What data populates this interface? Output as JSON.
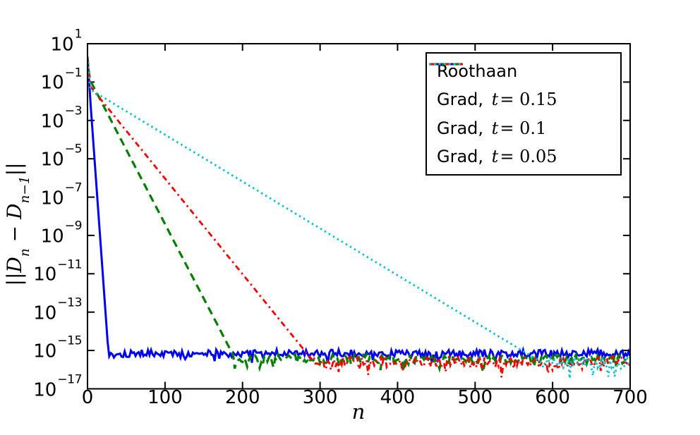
{
  "page": {
    "background": "#ffffff"
  },
  "chart_data": {
    "type": "line",
    "title": "",
    "xlabel": "n",
    "ylabel": "||D_n - D_{n-1}||",
    "ylabel_tokens": [
      {
        "text": "||",
        "kind": "norm"
      },
      {
        "text": "D",
        "kind": "var"
      },
      {
        "text": "n",
        "kind": "sub"
      },
      {
        "text": " − ",
        "kind": "norm"
      },
      {
        "text": "D",
        "kind": "var"
      },
      {
        "text": "n−1",
        "kind": "sub"
      },
      {
        "text": "||",
        "kind": "norm"
      }
    ],
    "grid": false,
    "x_axis": {
      "min": 0,
      "max": 700,
      "ticks": [
        0,
        100,
        200,
        300,
        400,
        500,
        600,
        700
      ]
    },
    "y_axis": {
      "scale": "log10",
      "min_exp": -17,
      "max_exp": 1,
      "tick_base": "10",
      "tick_exponents": [
        1,
        -1,
        -3,
        -5,
        -7,
        -9,
        -11,
        -13,
        -15,
        -17
      ]
    },
    "legend": {
      "position": "upper-right",
      "border_color": "#000000",
      "background": "#ffffff"
    },
    "series": [
      {
        "name": "roothaan",
        "legend_prefix": "Roothaan",
        "legend_var": "",
        "legend_rest": "",
        "color": "#0000f2",
        "style": "solid",
        "linewidth": 3,
        "anchors_n_log10": [
          [
            0,
            0.33
          ],
          [
            1,
            -0.15
          ],
          [
            3,
            -1.6
          ],
          [
            27,
            -15.15
          ]
        ],
        "floor_start_n": 27,
        "floor_log10": -15.15,
        "noise_amp_log10": 0.2,
        "dip_gain": 4,
        "seed": 101
      },
      {
        "name": "grad-t-0-15",
        "legend_prefix": "Grad, ",
        "legend_var": "t",
        "legend_rest": "= 0.15",
        "color": "#008000",
        "style": "dashed",
        "linewidth": 3.2,
        "anchors_n_log10": [
          [
            0,
            0.3
          ],
          [
            1,
            -0.35
          ],
          [
            4,
            -0.95
          ],
          [
            190,
            -15.4
          ]
        ],
        "floor_start_n": 190,
        "floor_log10": -15.45,
        "noise_amp_log10": 0.24,
        "dip_gain": 5,
        "seed": 202
      },
      {
        "name": "grad-t-0-1",
        "legend_prefix": "Grad, ",
        "legend_var": "t",
        "legend_rest": "= 0.1",
        "color": "#ff0000",
        "style": "dashdot",
        "linewidth": 2.8,
        "anchors_n_log10": [
          [
            0,
            0.3
          ],
          [
            1,
            -0.5
          ],
          [
            4,
            -1.25
          ],
          [
            292,
            -15.6
          ]
        ],
        "floor_start_n": 292,
        "floor_log10": -15.6,
        "noise_amp_log10": 0.28,
        "dip_gain": 7,
        "seed": 303
      },
      {
        "name": "grad-t-0-05",
        "legend_prefix": "Grad, ",
        "legend_var": "t",
        "legend_rest": "= 0.05",
        "color": "#00c2d4",
        "style": "dotted",
        "linewidth": 2.8,
        "anchors_n_log10": [
          [
            0,
            0.3
          ],
          [
            1,
            -0.6
          ],
          [
            4,
            -1.4
          ],
          [
            585,
            -15.6
          ]
        ],
        "floor_start_n": 585,
        "floor_log10": -15.65,
        "noise_amp_log10": 0.32,
        "dip_gain": 9,
        "seed": 404
      }
    ]
  }
}
